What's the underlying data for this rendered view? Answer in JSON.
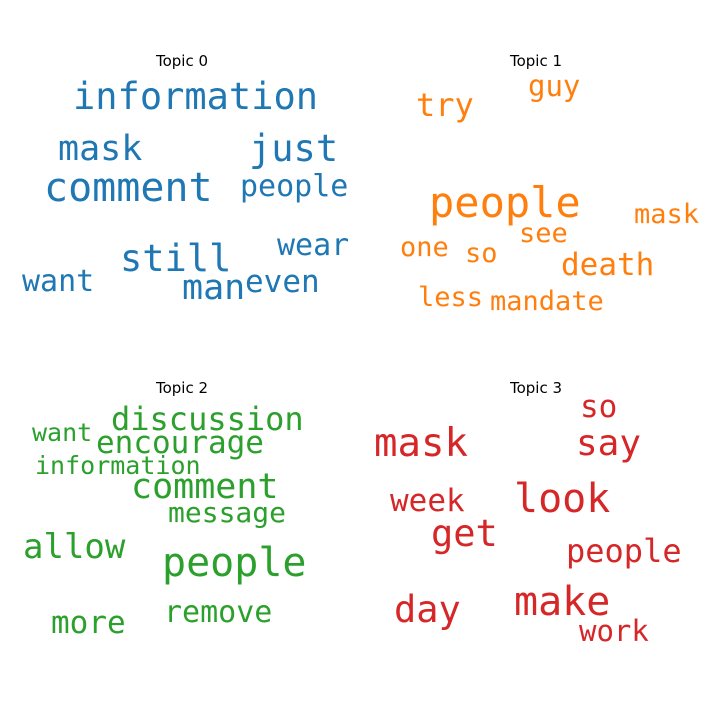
{
  "chart_data": [
    {
      "type": "wordcloud",
      "title": "Topic 0",
      "color": "#1f77b4",
      "words": [
        {
          "text": "information",
          "weight": 0.9
        },
        {
          "text": "mask",
          "weight": 0.8
        },
        {
          "text": "just",
          "weight": 0.8
        },
        {
          "text": "comment",
          "weight": 1.0
        },
        {
          "text": "people",
          "weight": 0.7
        },
        {
          "text": "still",
          "weight": 0.9
        },
        {
          "text": "wear",
          "weight": 0.7
        },
        {
          "text": "want",
          "weight": 0.7
        },
        {
          "text": "man",
          "weight": 0.8
        },
        {
          "text": "even",
          "weight": 0.7
        }
      ]
    },
    {
      "type": "wordcloud",
      "title": "Topic 1",
      "color": "#ff7f0e",
      "words": [
        {
          "text": "guy",
          "weight": 0.7
        },
        {
          "text": "try",
          "weight": 0.7
        },
        {
          "text": "people",
          "weight": 1.0
        },
        {
          "text": "mask",
          "weight": 0.6
        },
        {
          "text": "see",
          "weight": 0.6
        },
        {
          "text": "one",
          "weight": 0.6
        },
        {
          "text": "so",
          "weight": 0.6
        },
        {
          "text": "death",
          "weight": 0.7
        },
        {
          "text": "less",
          "weight": 0.6
        },
        {
          "text": "mandate",
          "weight": 0.6
        }
      ]
    },
    {
      "type": "wordcloud",
      "title": "Topic 2",
      "color": "#2ca02c",
      "words": [
        {
          "text": "discussion",
          "weight": 0.8
        },
        {
          "text": "want",
          "weight": 0.6
        },
        {
          "text": "encourage",
          "weight": 0.7
        },
        {
          "text": "information",
          "weight": 0.6
        },
        {
          "text": "comment",
          "weight": 0.9
        },
        {
          "text": "message",
          "weight": 0.6
        },
        {
          "text": "allow",
          "weight": 0.8
        },
        {
          "text": "people",
          "weight": 1.0
        },
        {
          "text": "remove",
          "weight": 0.7
        },
        {
          "text": "more",
          "weight": 0.7
        }
      ]
    },
    {
      "type": "wordcloud",
      "title": "Topic 3",
      "color": "#d62728",
      "words": [
        {
          "text": "so",
          "weight": 0.7
        },
        {
          "text": "mask",
          "weight": 0.9
        },
        {
          "text": "say",
          "weight": 0.8
        },
        {
          "text": "look",
          "weight": 0.9
        },
        {
          "text": "week",
          "weight": 0.7
        },
        {
          "text": "get",
          "weight": 0.8
        },
        {
          "text": "people",
          "weight": 0.7
        },
        {
          "text": "day",
          "weight": 0.8
        },
        {
          "text": "make",
          "weight": 0.9
        },
        {
          "text": "work",
          "weight": 0.6
        }
      ]
    }
  ]
}
